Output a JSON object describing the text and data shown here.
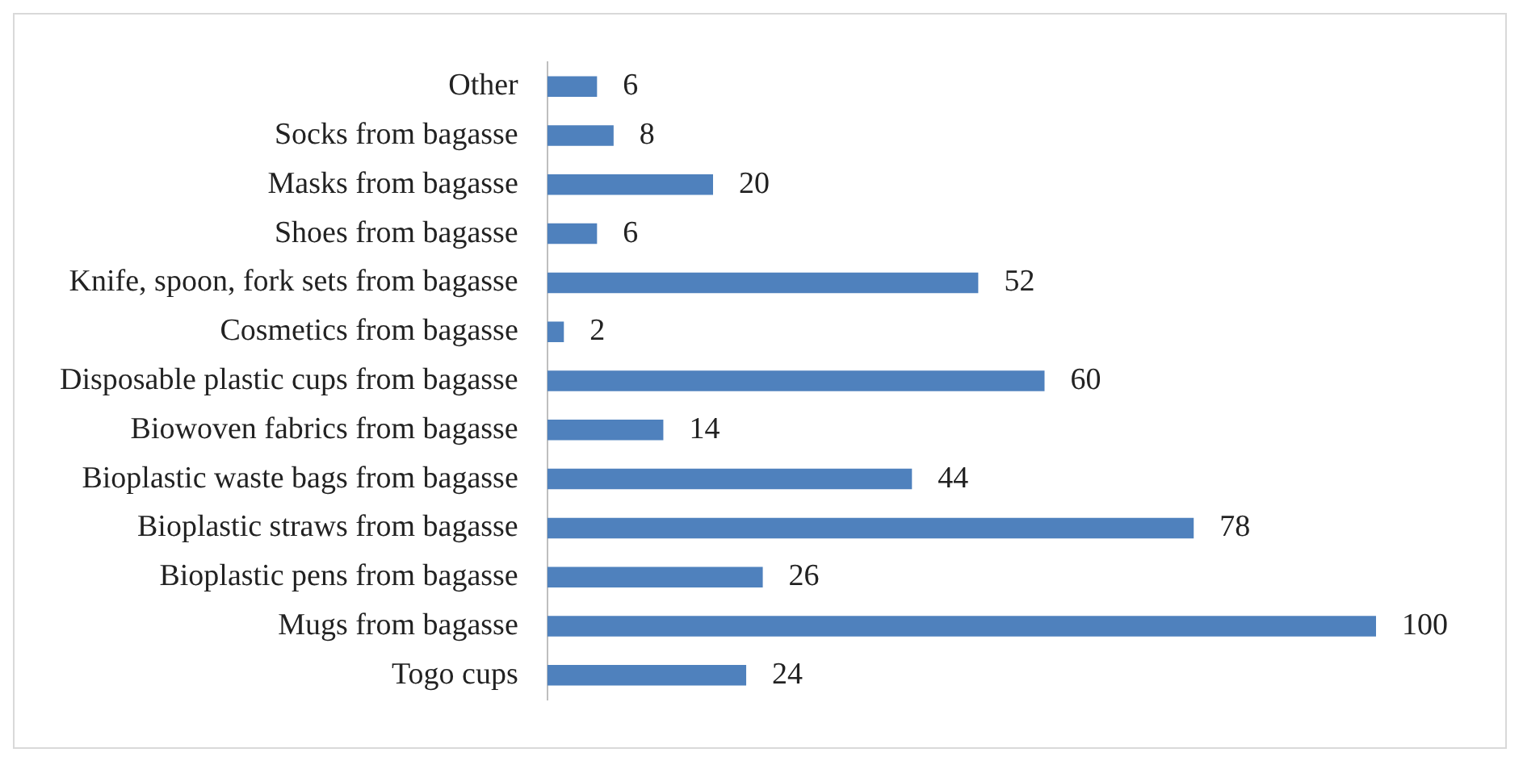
{
  "chart_data": {
    "type": "bar",
    "orientation": "horizontal",
    "data_labels": true,
    "legend": false,
    "tick_labels": "y",
    "categories": [
      "Other",
      "Socks from bagasse",
      "Masks from bagasse",
      "Shoes from bagasse",
      "Knife, spoon, fork sets from bagasse",
      "Cosmetics from bagasse",
      "Disposable plastic cups from bagasse",
      "Biowoven fabrics from bagasse",
      "Bioplastic waste bags from bagasse",
      "Bioplastic straws from bagasse",
      "Bioplastic pens from bagasse",
      "Mugs from bagasse",
      "Togo cups"
    ],
    "series": [
      {
        "color": "#4f81bd",
        "values": [
          6,
          8,
          20,
          6,
          52,
          2,
          60,
          14,
          44,
          78,
          26,
          100,
          24
        ]
      }
    ]
  }
}
